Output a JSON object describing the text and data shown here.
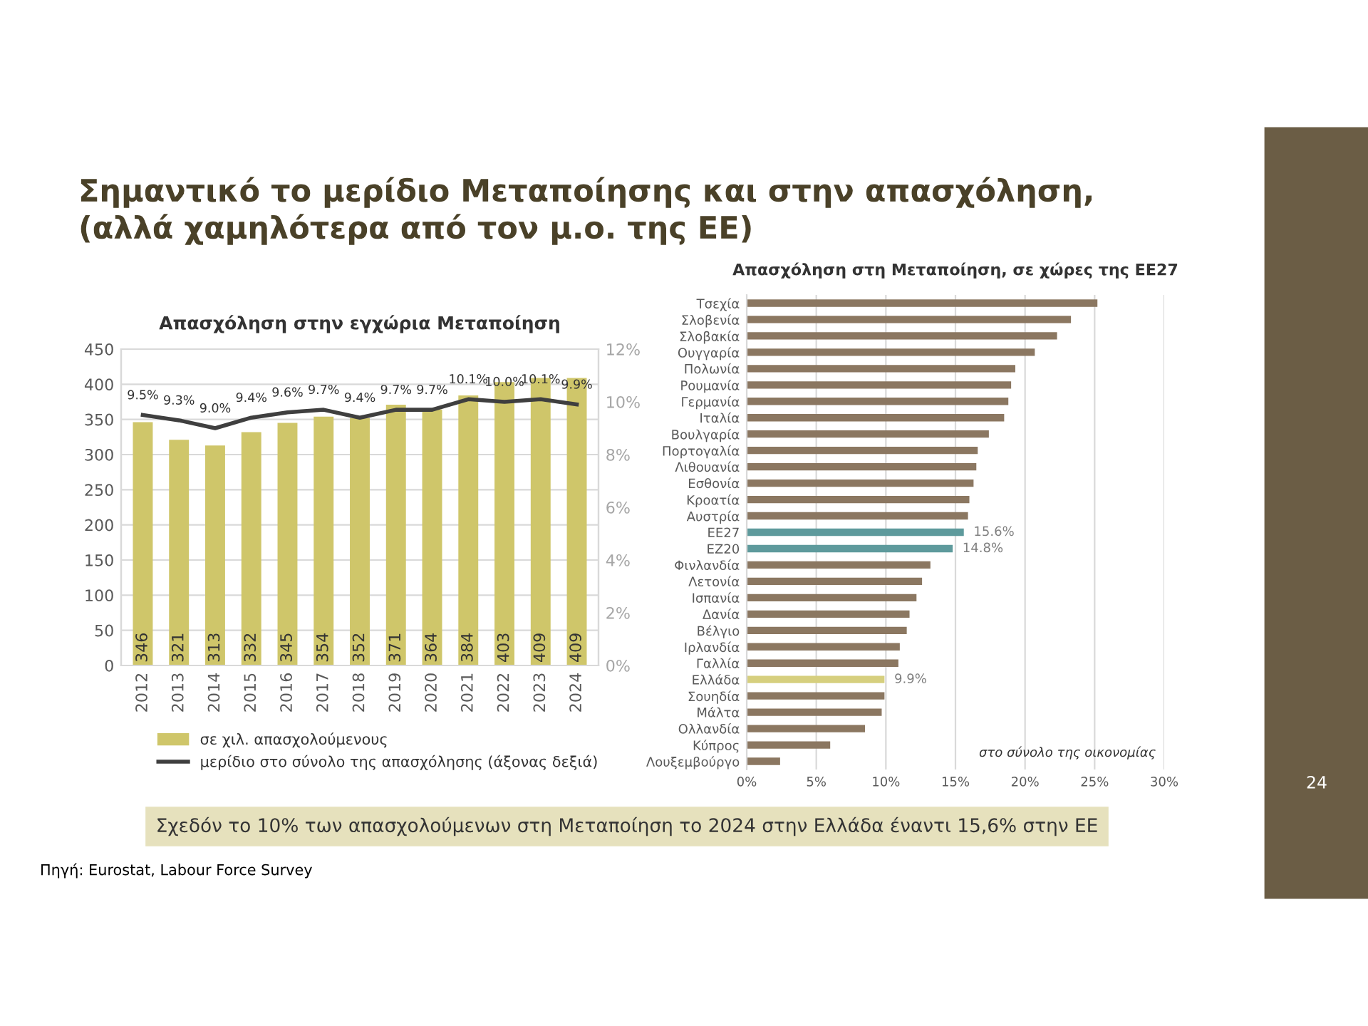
{
  "chart_data": [
    {
      "type": "bar",
      "title": "Απασχόληση στην εγχώρια Μεταποίηση",
      "categories": [
        "2012",
        "2013",
        "2014",
        "2015",
        "2016",
        "2017",
        "2018",
        "2019",
        "2020",
        "2021",
        "2022",
        "2023",
        "2024"
      ],
      "series": [
        {
          "name": "σε χιλ. απασχολούμενους",
          "color": "#cfc66a",
          "values": [
            346,
            321,
            313,
            332,
            345,
            354,
            352,
            371,
            364,
            384,
            403,
            409,
            409
          ]
        },
        {
          "name": "μερίδιο στο σύνολο της απασχόλησης (άξονας δεξιά)",
          "type": "line",
          "axis": "y2",
          "color": "#3f3f3f",
          "marker": "none",
          "line_style": "solid",
          "values": [
            9.5,
            9.3,
            9.0,
            9.4,
            9.6,
            9.7,
            9.4,
            9.7,
            9.7,
            10.1,
            10.0,
            10.1,
            9.9
          ],
          "value_labels": [
            "9.5%",
            "9.3%",
            "9.0%",
            "9.4%",
            "9.6%",
            "9.7%",
            "9.4%",
            "9.7%",
            "9.7%",
            "10.1%",
            "10.0%",
            "10.1%",
            "9.9%"
          ]
        }
      ],
      "data_labels": true,
      "ylim": [
        0,
        450
      ],
      "yticks": [
        0,
        50,
        100,
        150,
        200,
        250,
        300,
        350,
        400,
        450
      ],
      "y2lim": [
        0,
        12
      ],
      "y2ticks": [
        {
          "value": 0,
          "label": "0%"
        },
        {
          "value": 2,
          "label": "2%"
        },
        {
          "value": 4,
          "label": "4%"
        },
        {
          "value": 6,
          "label": "6%"
        },
        {
          "value": 8,
          "label": "8%"
        },
        {
          "value": 10,
          "label": "10%"
        },
        {
          "value": 12,
          "label": "12%"
        }
      ],
      "grid": "y",
      "legend": "bottom",
      "annotations": [
        "Σημαντικό το μερίδιο Μεταποίησης και στην απασχόληση,\n(αλλά χαμηλότερα από τον μ.ο. της ΕΕ)",
        "Σχεδόν το 10% των απασχολούμενων στη Μεταποίηση το 2024 στην Ελλάδα έναντι 15,6% στην ΕΕ",
        "Πηγή: Eurostat, Labour Force Survey",
        "24"
      ]
    },
    {
      "type": "bar",
      "orientation": "horizontal",
      "title": "Απασχόληση στη Μεταποίηση, σε χώρες της ΕΕ27",
      "categories": [
        "Τσεχία",
        "Σλοβενία",
        "Σλοβακία",
        "Ουγγαρία",
        "Πολωνία",
        "Ρουμανία",
        "Γερμανία",
        "Ιταλία",
        "Βουλγαρία",
        "Πορτογαλία",
        "Λιθουανία",
        "Εσθονία",
        "Κροατία",
        "Αυστρία",
        "ΕΕ27",
        "ΕΖ20",
        "Φινλανδία",
        "Λετονία",
        "Ισπανία",
        "Δανία",
        "Βέλγιο",
        "Ιρλανδία",
        "Γαλλία",
        "Ελλάδα",
        "Σουηδία",
        "Μάλτα",
        "Ολλανδία",
        "Κύπρος",
        "Λουξεμβούργο"
      ],
      "values": [
        25.2,
        23.3,
        22.3,
        20.7,
        19.3,
        19.0,
        18.8,
        18.5,
        17.4,
        16.6,
        16.5,
        16.3,
        16.0,
        15.9,
        15.6,
        14.8,
        13.2,
        12.6,
        12.2,
        11.7,
        11.5,
        11.0,
        10.9,
        9.9,
        9.9,
        9.7,
        8.5,
        6.0,
        2.4
      ],
      "colors": [
        "#8b7761",
        "#8b7761",
        "#8b7761",
        "#8b7761",
        "#8b7761",
        "#8b7761",
        "#8b7761",
        "#8b7761",
        "#8b7761",
        "#8b7761",
        "#8b7761",
        "#8b7761",
        "#8b7761",
        "#8b7761",
        "#5e9a9c",
        "#5e9a9c",
        "#8b7761",
        "#8b7761",
        "#8b7761",
        "#8b7761",
        "#8b7761",
        "#8b7761",
        "#8b7761",
        "#d6cf7e",
        "#8b7761",
        "#8b7761",
        "#8b7761",
        "#8b7761",
        "#8b7761"
      ],
      "value_labels": [
        null,
        null,
        null,
        null,
        null,
        null,
        null,
        null,
        null,
        null,
        null,
        null,
        null,
        null,
        "15.6%",
        "14.8%",
        null,
        null,
        null,
        null,
        null,
        null,
        null,
        "9.9%",
        null,
        null,
        null,
        null,
        null
      ],
      "xlim": [
        0,
        30
      ],
      "xticks": [
        {
          "value": 0,
          "label": "0%"
        },
        {
          "value": 5,
          "label": "5%"
        },
        {
          "value": 10,
          "label": "10%"
        },
        {
          "value": 15,
          "label": "15%"
        },
        {
          "value": 20,
          "label": "20%"
        },
        {
          "value": 25,
          "label": "25%"
        },
        {
          "value": 30,
          "label": "30%"
        }
      ],
      "grid": "x",
      "annotations": [
        "στο σύνολο της οικονομίας"
      ]
    }
  ]
}
